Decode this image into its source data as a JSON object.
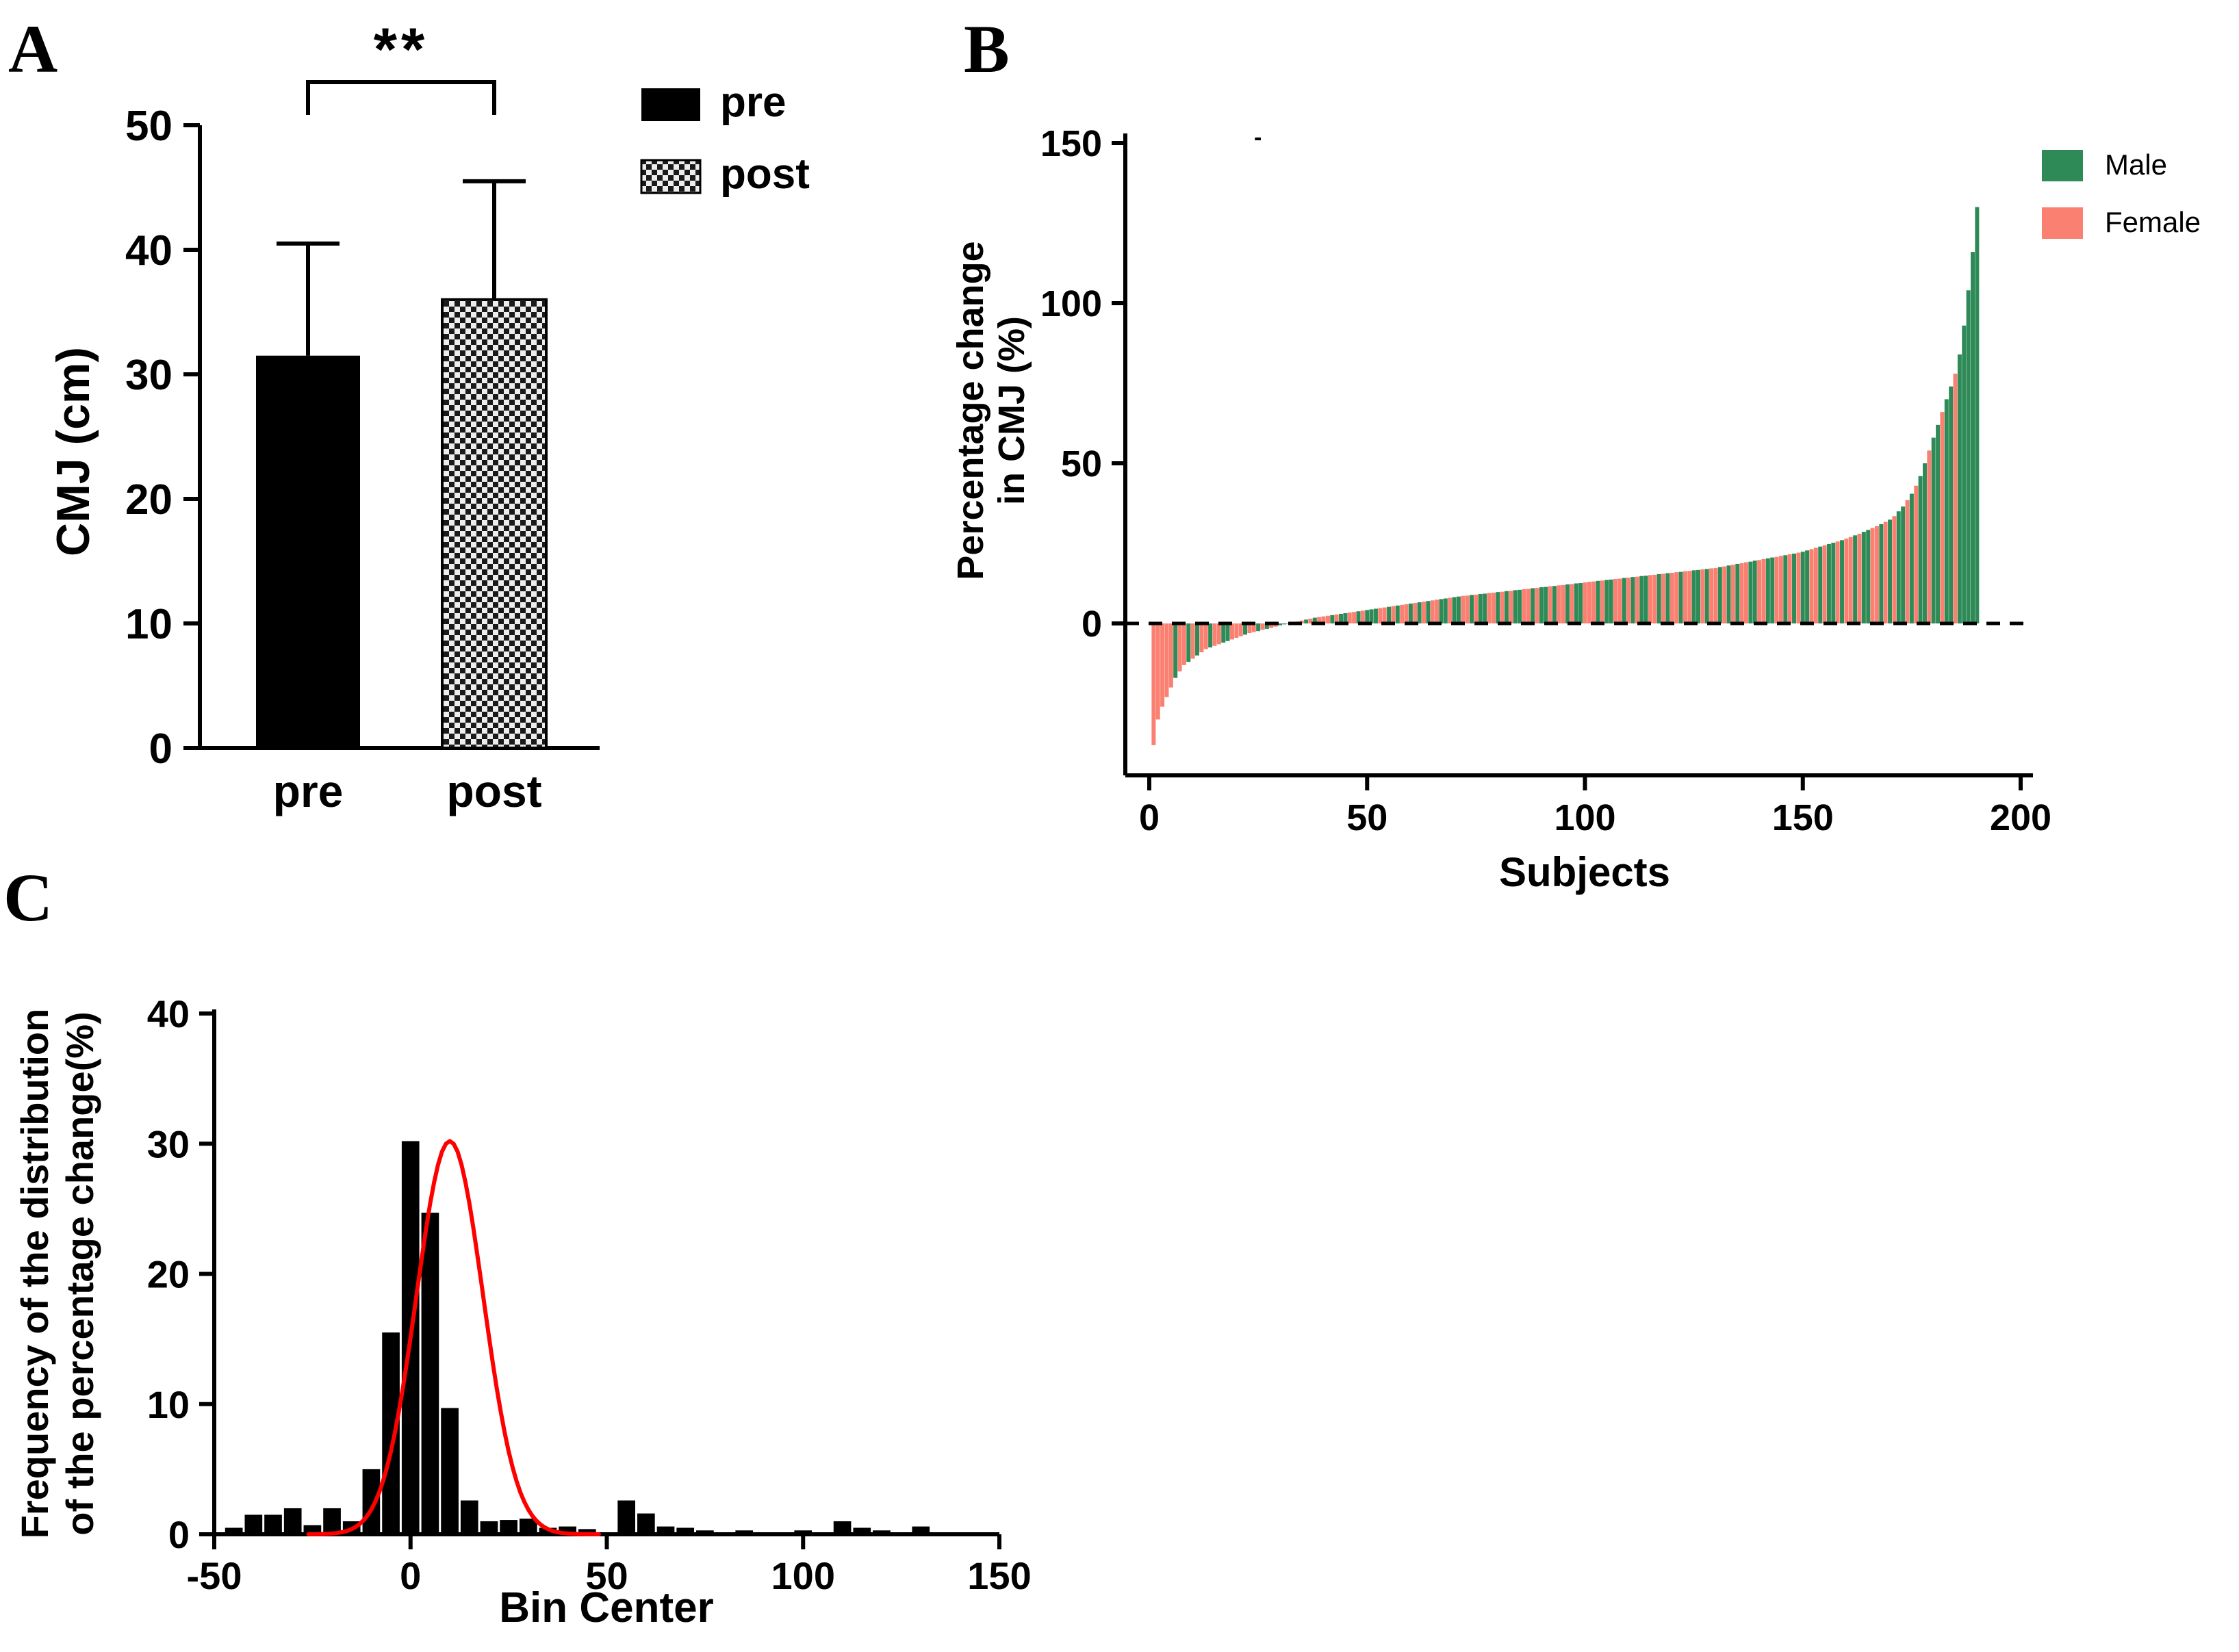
{
  "panels": {
    "a": {
      "letter": "A"
    },
    "b": {
      "letter": "B",
      "stray_mark": "-"
    },
    "c": {
      "letter": "C"
    }
  },
  "chart_data": [
    {
      "id": "panel-a",
      "type": "bar",
      "categories": [
        "pre",
        "post"
      ],
      "values": [
        31.5,
        36.0
      ],
      "error_up": [
        9.0,
        9.5
      ],
      "ylabel": "CMJ (cm)",
      "ylim": [
        0,
        50
      ],
      "yticks": [
        0,
        10,
        20,
        30,
        40,
        50
      ],
      "significance_label": "**",
      "bar_styles": [
        "solid-black",
        "checkered"
      ],
      "legend": [
        {
          "label": "pre"
        },
        {
          "label": "post"
        }
      ],
      "grid": false
    },
    {
      "id": "panel-b",
      "type": "bar",
      "subtype": "waterfall",
      "xlabel": "Subjects",
      "ylabel": [
        "Percentage change",
        "in CMJ (%)"
      ],
      "ylim": [
        -47,
        150
      ],
      "yticks": [
        0,
        50,
        100,
        150
      ],
      "xlim": [
        0,
        200
      ],
      "xticks": [
        0,
        50,
        100,
        150,
        200
      ],
      "zero_line": "dashed",
      "n_subjects": 190,
      "legend": [
        {
          "label": "Male",
          "color": "#2E8B57"
        },
        {
          "label": "Female",
          "color": "#FA8072"
        }
      ],
      "values": [
        -38,
        -30,
        -26,
        -23,
        -20,
        -17,
        -15,
        -13,
        -12,
        -11,
        -10,
        -9,
        -8,
        -7.5,
        -7,
        -6.5,
        -6,
        -5.5,
        -5,
        -4.5,
        -4,
        -3.5,
        -3,
        -2.7,
        -2.4,
        -2,
        -1.7,
        -1.4,
        -1,
        -0.6,
        -0.3,
        0,
        0.3,
        0.6,
        0.9,
        1.2,
        1.5,
        1.8,
        2,
        2.2,
        2.4,
        2.6,
        2.8,
        3,
        3.2,
        3.4,
        3.6,
        3.8,
        4,
        4.2,
        4.4,
        4.6,
        4.8,
        5,
        5.2,
        5.4,
        5.6,
        5.8,
        6,
        6.2,
        6.4,
        6.6,
        6.8,
        7,
        7.2,
        7.4,
        7.6,
        7.8,
        8,
        8.2,
        8.4,
        8.6,
        8.7,
        8.9,
        9,
        9.2,
        9.3,
        9.5,
        9.6,
        9.8,
        9.9,
        10.1,
        10.2,
        10.4,
        10.5,
        10.7,
        10.8,
        11,
        11.1,
        11.3,
        11.4,
        11.6,
        11.7,
        11.9,
        12,
        12.2,
        12.3,
        12.5,
        12.6,
        12.8,
        13,
        13.1,
        13.3,
        13.4,
        13.6,
        13.7,
        13.9,
        14,
        14.2,
        14.3,
        14.5,
        14.6,
        14.8,
        14.9,
        15.1,
        15.2,
        15.4,
        15.5,
        15.7,
        15.8,
        16,
        16.1,
        16.3,
        16.4,
        16.6,
        16.7,
        16.9,
        17,
        17.2,
        17.3,
        17.6,
        17.8,
        18.1,
        18.3,
        18.6,
        18.8,
        19.1,
        19.3,
        19.6,
        19.8,
        20.1,
        20.3,
        20.6,
        20.8,
        21.1,
        21.3,
        21.6,
        21.8,
        22.1,
        22.4,
        22.8,
        23.2,
        23.6,
        24,
        24.4,
        24.8,
        25.2,
        25.6,
        26,
        26.5,
        27,
        27.5,
        28,
        28.6,
        29.2,
        29.8,
        30.4,
        31,
        31.7,
        32.4,
        33.5,
        35,
        36.5,
        38.5,
        40.5,
        43,
        46,
        50,
        54,
        58,
        62,
        66,
        70,
        74,
        78,
        84,
        93,
        104,
        116,
        130
      ],
      "sex": "FFFFFMFFMFMFFMFFMMFFFMFFMFMFFMMFMFFMFMFFFMFMMFFMFMMMFFMFMFFMFMFMFFMMFMMFFMFMMFFMFMFMMFFMFMMFMFFMFMMFFFMFMMFFMFMFMMFFMFMFFMFFMMFMFFMFMFMFFMMFFMMFFMFMFMMFFMFMMFMFFMFMMFFMFMFMMFMFMMFMMFMMFMMMMM"
    },
    {
      "id": "panel-c",
      "type": "histogram",
      "xlabel": "Bin Center",
      "ylabel": [
        "Frequency of the distribution",
        "of the percentage change(%)"
      ],
      "ylim": [
        0,
        40
      ],
      "yticks": [
        0,
        10,
        20,
        30,
        40
      ],
      "xlim": [
        -50,
        150
      ],
      "xticks": [
        -50,
        0,
        50,
        100,
        150
      ],
      "bin_width": 5,
      "bar_color": "#000000",
      "bins": [
        [
          -45,
          0.5
        ],
        [
          -40,
          1.5
        ],
        [
          -35,
          1.5
        ],
        [
          -30,
          2.0
        ],
        [
          -25,
          0.7
        ],
        [
          -20,
          2.0
        ],
        [
          -15,
          1.0
        ],
        [
          -10,
          5.0
        ],
        [
          -5,
          15.5
        ],
        [
          0,
          30.2
        ],
        [
          5,
          24.7
        ],
        [
          10,
          9.7
        ],
        [
          15,
          2.6
        ],
        [
          20,
          1.0
        ],
        [
          25,
          1.1
        ],
        [
          30,
          1.2
        ],
        [
          35,
          0.5
        ],
        [
          40,
          0.6
        ],
        [
          45,
          0.4
        ],
        [
          55,
          2.6
        ],
        [
          60,
          1.6
        ],
        [
          65,
          0.6
        ],
        [
          70,
          0.5
        ],
        [
          75,
          0.3
        ],
        [
          85,
          0.3
        ],
        [
          100,
          0.3
        ],
        [
          110,
          1.0
        ],
        [
          115,
          0.5
        ],
        [
          120,
          0.3
        ],
        [
          130,
          0.6
        ]
      ],
      "fit_curve": {
        "type": "gaussian",
        "color": "#FF0000",
        "amplitude": 30.2,
        "mean": 10,
        "sd": 8.5
      }
    }
  ]
}
